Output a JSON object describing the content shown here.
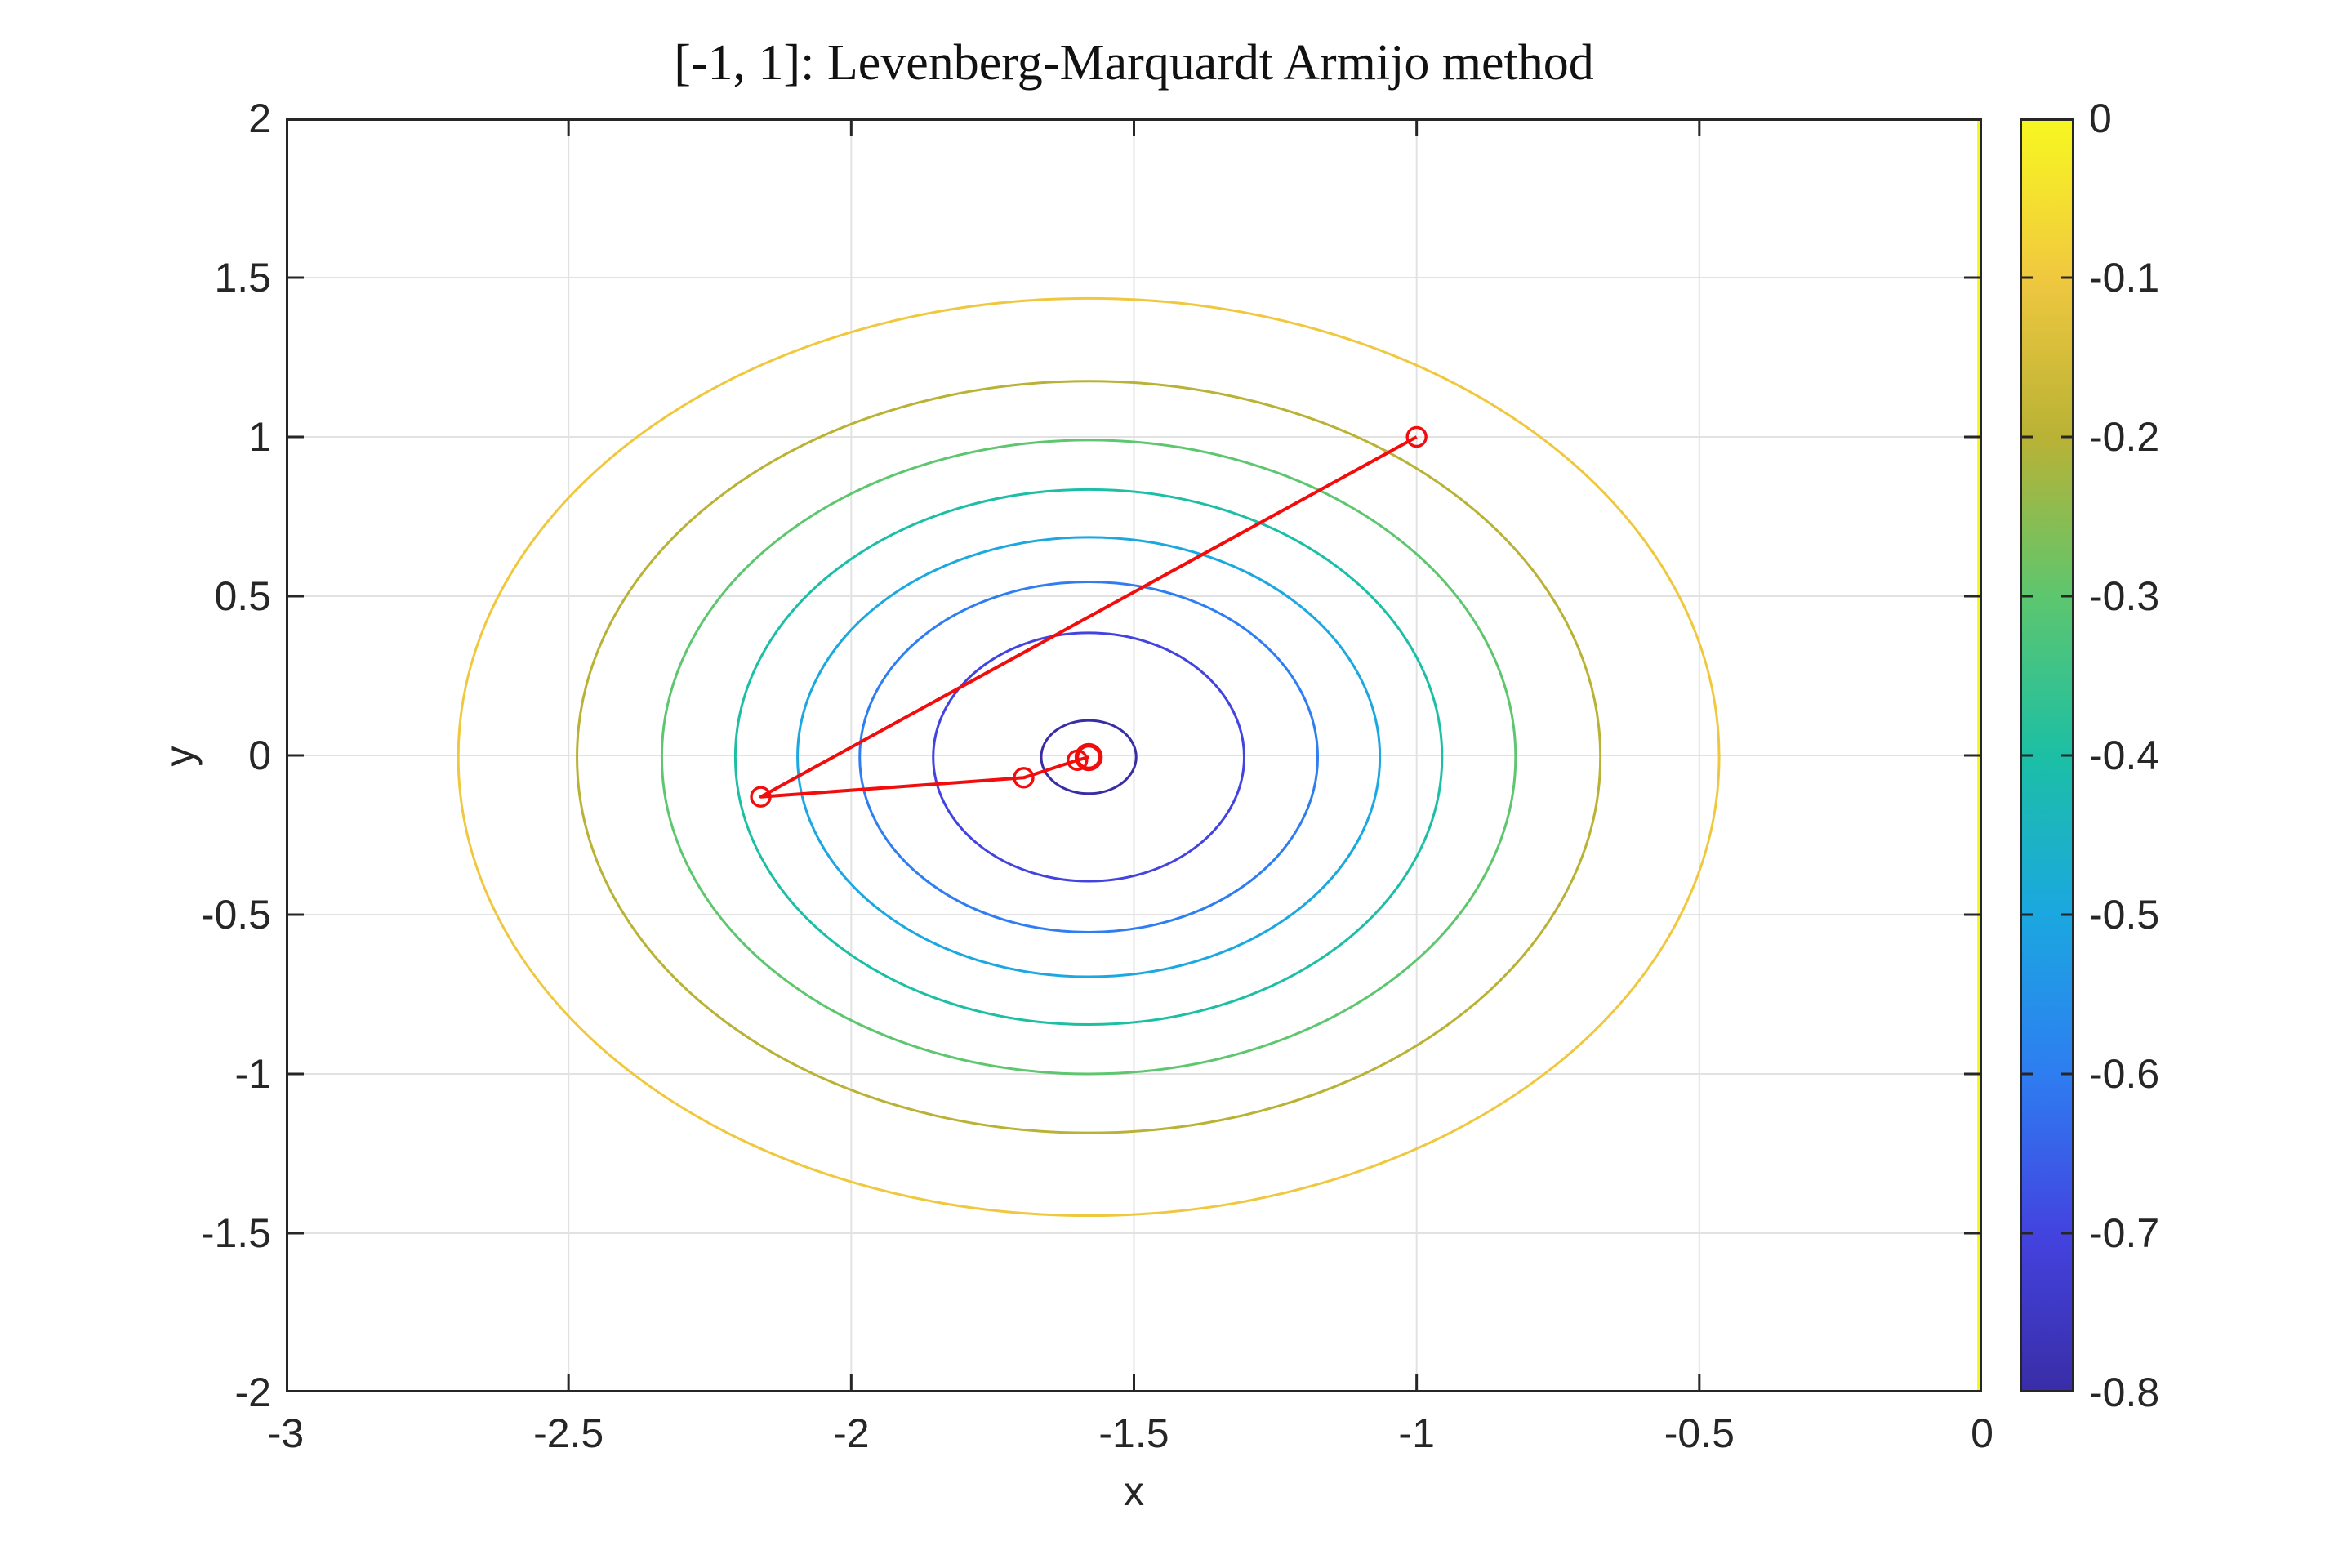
{
  "title": "[-1, 1]: Levenberg-Marquardt Armijo method",
  "axes": {
    "xlabel": "x",
    "ylabel": "y",
    "x_tick_labels": [
      "-3",
      "-2.5",
      "-2",
      "-1.5",
      "-1",
      "-0.5",
      "0"
    ],
    "y_tick_labels": [
      "2",
      "1.5",
      "1",
      "0.5",
      "0",
      "-0.5",
      "-1",
      "-1.5",
      "-2"
    ]
  },
  "colorbar": {
    "tick_labels": [
      "0",
      "-0.1",
      "-0.2",
      "-0.3",
      "-0.4",
      "-0.5",
      "-0.6",
      "-0.7",
      "-0.8"
    ]
  },
  "chart_data": {
    "type": "contour",
    "title": "[-1, 1]: Levenberg-Marquardt Armijo method",
    "xlabel": "x",
    "ylabel": "y",
    "xlim": [
      -3,
      0
    ],
    "ylim": [
      -2,
      2
    ],
    "x_ticks": [
      -3,
      -2.5,
      -2,
      -1.5,
      -1,
      -0.5,
      0
    ],
    "y_ticks": [
      2,
      1.5,
      1,
      0.5,
      0,
      -0.5,
      -1,
      -1.5,
      -2
    ],
    "grid": true,
    "grid_color": "#e2e2e2",
    "axis_color": "#262626",
    "title_color": "#111111",
    "colorbar_range": [
      -0.8,
      0
    ],
    "colorbar_ticks": [
      0,
      -0.1,
      -0.2,
      -0.3,
      -0.4,
      -0.5,
      -0.6,
      -0.7,
      -0.8
    ],
    "colormap_name": "parula",
    "colormap_stops": [
      {
        "f": 0.0,
        "color": "#392da6"
      },
      {
        "f": 0.125,
        "color": "#4343e0"
      },
      {
        "f": 0.25,
        "color": "#2e7df1"
      },
      {
        "f": 0.375,
        "color": "#1ba7e0"
      },
      {
        "f": 0.5,
        "color": "#1cbfa5"
      },
      {
        "f": 0.625,
        "color": "#5dc66e"
      },
      {
        "f": 0.75,
        "color": "#b9b235"
      },
      {
        "f": 0.875,
        "color": "#f0c83f"
      },
      {
        "f": 0.95,
        "color": "#f5e52c"
      },
      {
        "f": 1.0,
        "color": "#f6f721"
      }
    ],
    "contour_center": [
      -1.58,
      -0.005
    ],
    "contour_levels": [
      {
        "level": -0.1,
        "rx": 1.115,
        "ry": 1.44,
        "color": "#f0c83f"
      },
      {
        "level": -0.2,
        "rx": 0.905,
        "ry": 1.18,
        "color": "#b9b235"
      },
      {
        "level": -0.3,
        "rx": 0.755,
        "ry": 0.995,
        "color": "#5dc66e"
      },
      {
        "level": -0.4,
        "rx": 0.625,
        "ry": 0.84,
        "color": "#1cbfa5"
      },
      {
        "level": -0.5,
        "rx": 0.515,
        "ry": 0.69,
        "color": "#1ba7e0"
      },
      {
        "level": -0.6,
        "rx": 0.405,
        "ry": 0.55,
        "color": "#2e7df1"
      },
      {
        "level": -0.7,
        "rx": 0.275,
        "ry": 0.39,
        "color": "#4343e0"
      },
      {
        "level": -0.8,
        "rx": 0.084,
        "ry": 0.115,
        "color": "#392da6"
      }
    ],
    "zero_contour": {
      "level": 0,
      "x": 0,
      "color": "#f6f721"
    },
    "iterates": {
      "color": "#f20d0d",
      "start_point": [
        -1,
        1
      ],
      "points": [
        [
          -1,
          1
        ],
        [
          -2.16,
          -0.13
        ],
        [
          -1.695,
          -0.07
        ],
        [
          -1.6,
          -0.015
        ],
        [
          -1.58,
          -0.005
        ]
      ],
      "final_point": [
        -1.58,
        -0.005
      ]
    }
  }
}
